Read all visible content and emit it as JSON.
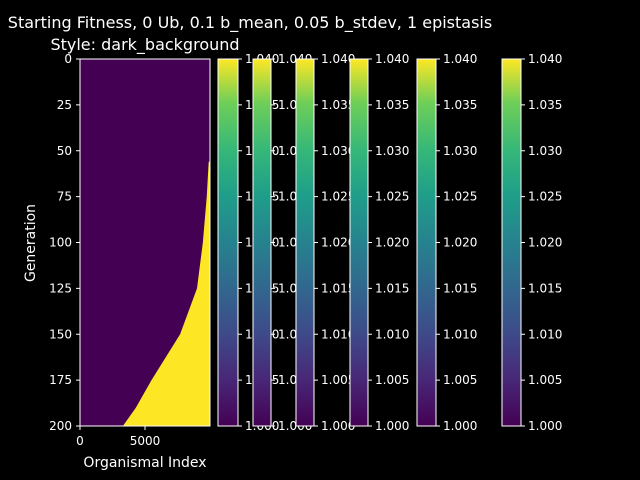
{
  "chart_data": {
    "type": "heatmap",
    "title_line1": "Starting Fitness, 0 Ub, 0.1 b_mean, 0.05 b_stdev, 1 epistasis",
    "title_line2": "Style: dark_background",
    "xlabel": "Organismal Index",
    "ylabel": "Generation",
    "x_ticks": [
      "0",
      "5000"
    ],
    "x_tick_values": [
      0,
      5000
    ],
    "y_ticks": [
      "0",
      "25",
      "50",
      "75",
      "100",
      "125",
      "150",
      "175",
      "200"
    ],
    "y_tick_values": [
      0,
      25,
      50,
      75,
      100,
      125,
      150,
      175,
      200
    ],
    "xlim": [
      0,
      10000
    ],
    "ylim": [
      200,
      0
    ],
    "colormap": "viridis",
    "value_range": [
      1.0,
      1.04
    ],
    "low_color": "#440154",
    "high_color": "#fde725",
    "boundary_generation": [
      56,
      75,
      100,
      125,
      150,
      175,
      190,
      200
    ],
    "boundary_index": [
      9900,
      9750,
      9450,
      9000,
      7700,
      5500,
      4300,
      3300
    ],
    "colorbar_ticks": [
      "1.000",
      "1.005",
      "1.010",
      "1.015",
      "1.020",
      "1.025",
      "1.030",
      "1.035",
      "1.040"
    ],
    "colorbar_tick_values": [
      1.0,
      1.005,
      1.01,
      1.015,
      1.02,
      1.025,
      1.03,
      1.035,
      1.04
    ],
    "colorbar_count": 6
  }
}
